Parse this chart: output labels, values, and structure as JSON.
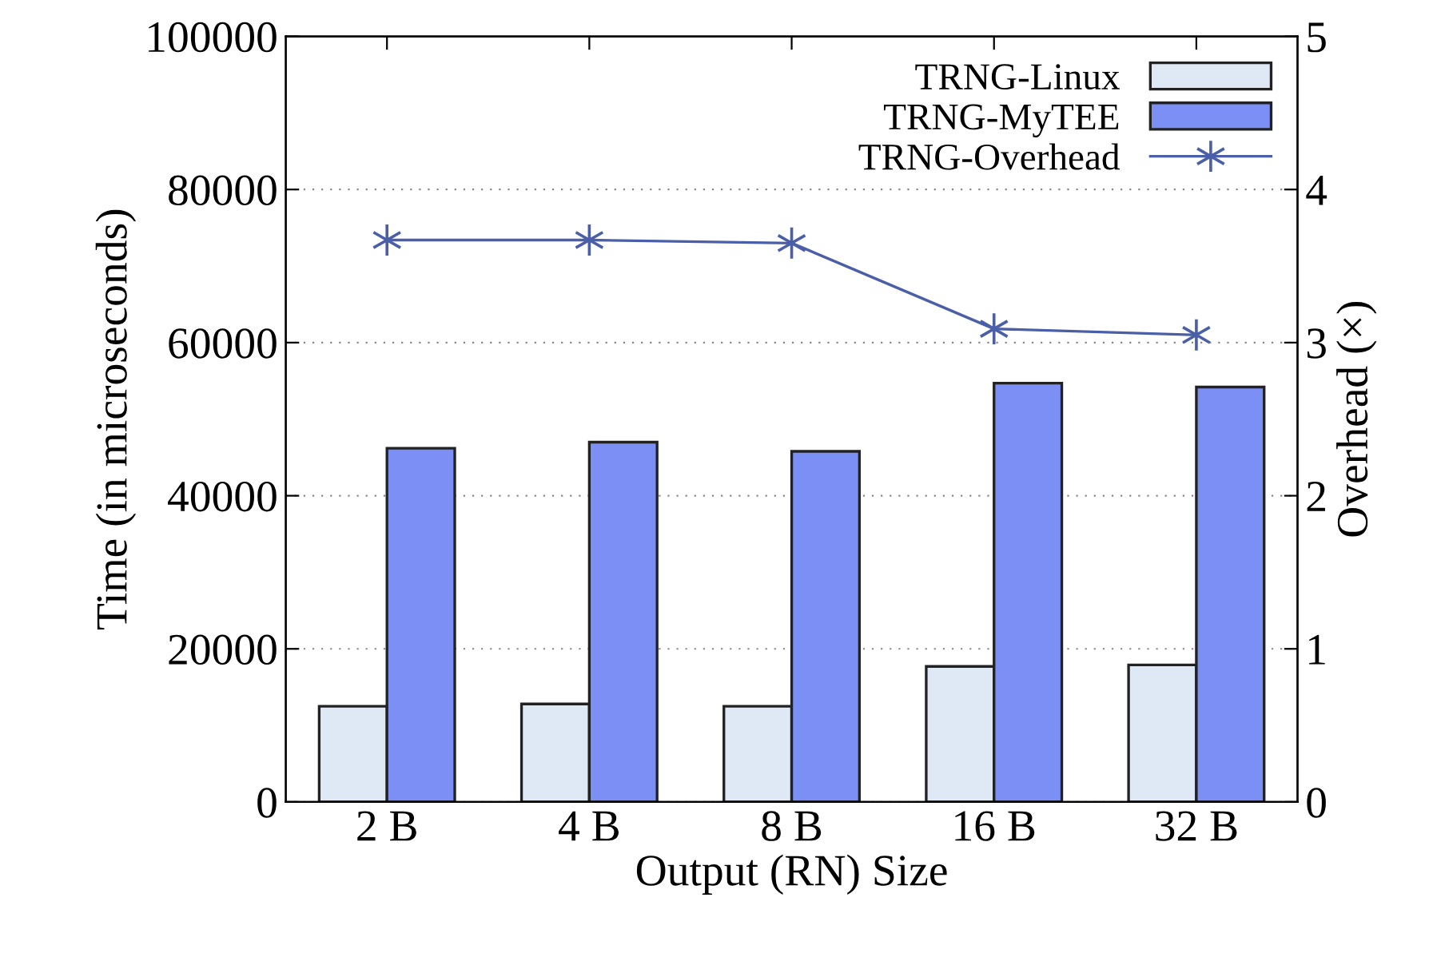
{
  "chart_data": {
    "type": "bar",
    "xlabel": "Output (RN) Size",
    "ylabel": "Time (in microseconds)",
    "y2label": "Overhead (×)",
    "categories": [
      "2 B",
      "4 B",
      "8 B",
      "16 B",
      "32 B"
    ],
    "series": [
      {
        "name": "TRNG-Linux",
        "color": "#dfe8f5",
        "values": [
          12500,
          12800,
          12500,
          17700,
          17900
        ]
      },
      {
        "name": "TRNG-MyTEE",
        "color": "#7b8ff5",
        "values": [
          46200,
          47000,
          45800,
          54700,
          54200
        ]
      },
      {
        "name": "TRNG-Overhead",
        "type": "line",
        "axis": "y2",
        "color": "#4a5fa8",
        "marker": "cross",
        "values": [
          3.67,
          3.67,
          3.65,
          3.09,
          3.05
        ]
      }
    ],
    "ylim": [
      0,
      100000
    ],
    "yticks": [
      0,
      20000,
      40000,
      60000,
      80000,
      100000
    ],
    "y2lim": [
      0,
      5
    ],
    "y2ticks": [
      0,
      1,
      2,
      3,
      4,
      5
    ],
    "grid": "y",
    "legend": "top right"
  }
}
